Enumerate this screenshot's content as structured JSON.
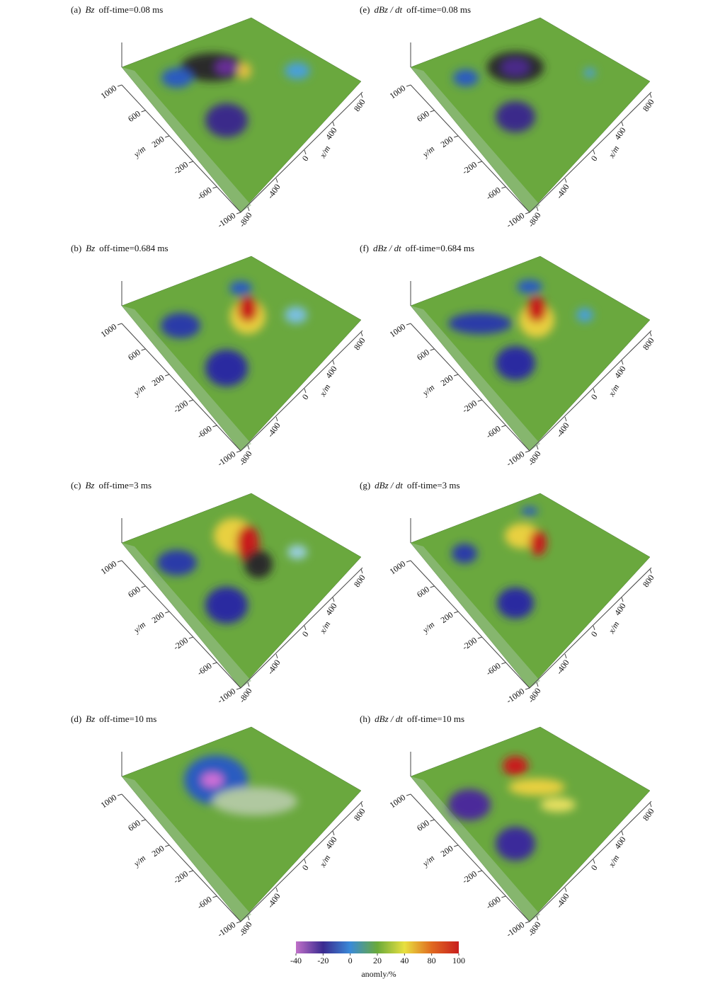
{
  "chart_data": {
    "type": "surface3d",
    "panels": [
      {
        "label": "(a)",
        "quantity": "Bz",
        "time": "off-time=0.08 ms"
      },
      {
        "label": "(e)",
        "quantity": "dBz / dt",
        "time": "off-time=0.08 ms"
      },
      {
        "label": "(b)",
        "quantity": "Bz",
        "time": "off-time=0.684 ms"
      },
      {
        "label": "(f)",
        "quantity": "dBz / dt",
        "time": "off-time=0.684 ms"
      },
      {
        "label": "(c)",
        "quantity": "Bz",
        "time": "off-time=3 ms"
      },
      {
        "label": "(g)",
        "quantity": "dBz / dt",
        "time": "off-time=3 ms"
      },
      {
        "label": "(d)",
        "quantity": "Bz",
        "time": "off-time=10 ms"
      },
      {
        "label": "(h)",
        "quantity": "dBz / dt",
        "time": "off-time=10 ms"
      }
    ],
    "y_axis": {
      "label": "y/m",
      "ticks": [
        1000,
        600,
        200,
        -200,
        -600,
        -1000
      ]
    },
    "x_axis": {
      "label": "x/m",
      "ticks": [
        -800,
        -400,
        0,
        400,
        800
      ]
    },
    "colorbar": {
      "label": "anomly/%",
      "ticks": [
        -40,
        -20,
        0,
        20,
        40,
        80,
        100
      ],
      "colors": [
        "#c070c8",
        "#3a2a90",
        "#3a8ad8",
        "#6aaa3a",
        "#e8e040",
        "#e06a20",
        "#c81e1e"
      ]
    }
  }
}
